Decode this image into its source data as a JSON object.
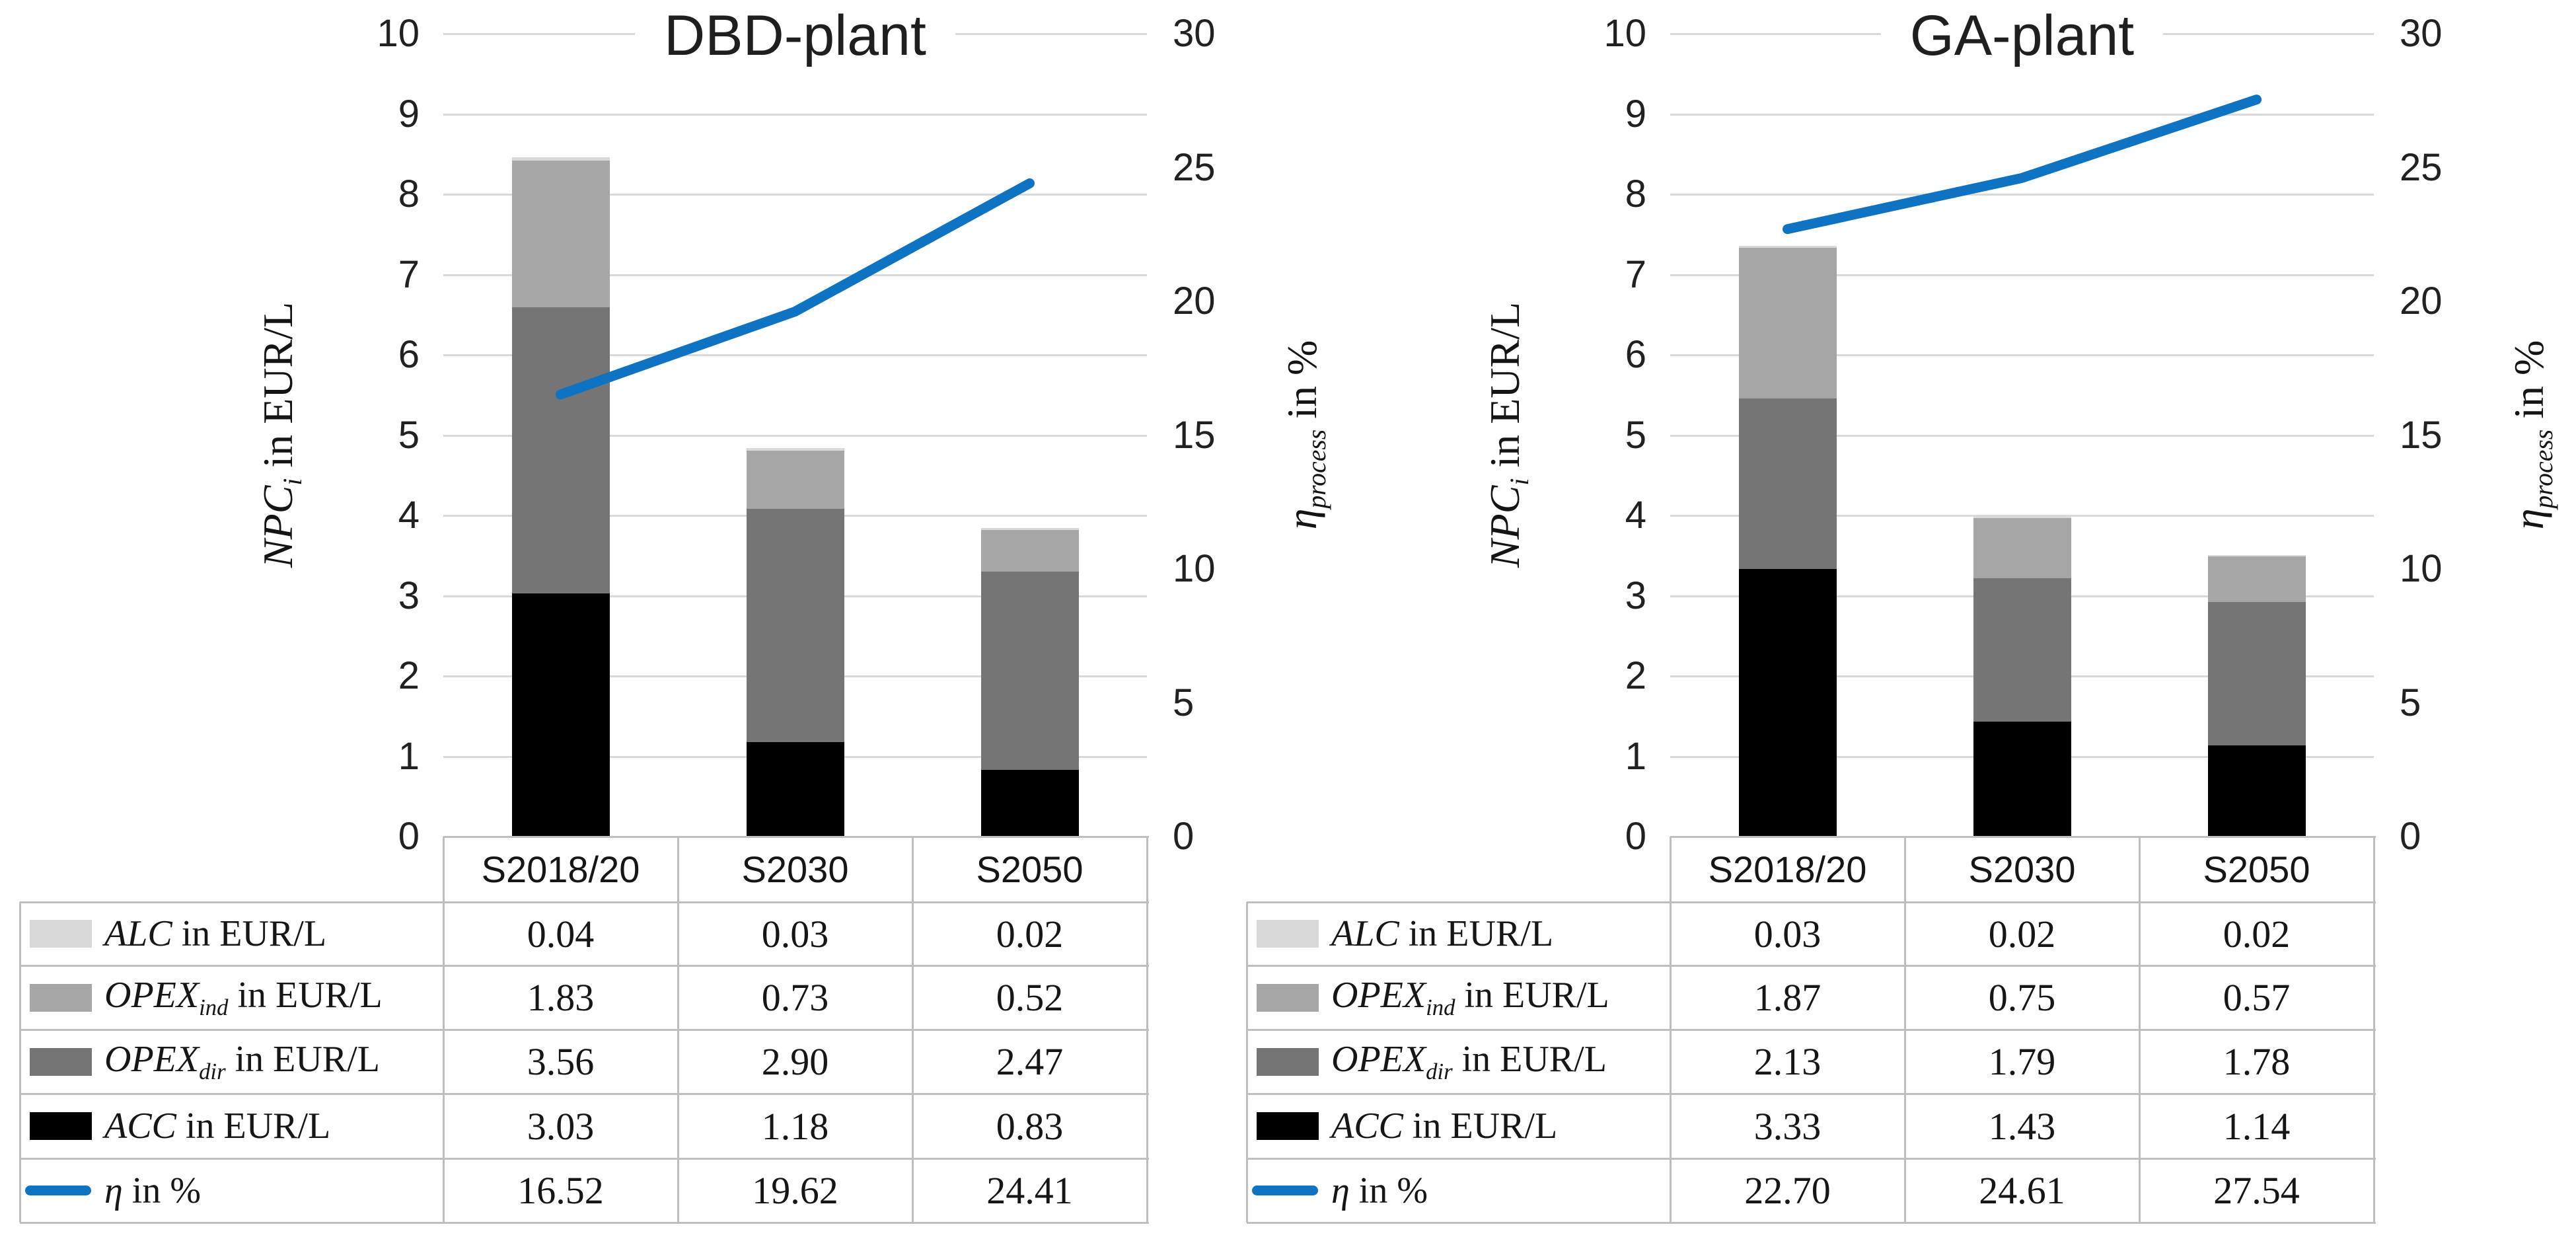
{
  "figure": {
    "background": "#ffffff"
  },
  "palette": {
    "grid": "#d9d9d9",
    "table_border": "#bfbfbf",
    "text": "#1a1a1a"
  },
  "chart_data": [
    {
      "type": "bar",
      "subtype": "stacked-bars-with-line-overlay",
      "title": "DBD-plant",
      "categories": [
        "S2018/20",
        "S2030",
        "S2050"
      ],
      "series": [
        {
          "name": "ALC in EUR/L",
          "rich": {
            "symbol": "ALC",
            "sub": "",
            "rest": " in EUR/L"
          },
          "color": "#d9d9d9",
          "values": [
            0.04,
            0.03,
            0.02
          ]
        },
        {
          "name": "OPEX_ind in EUR/L",
          "rich": {
            "symbol": "OPEX",
            "sub": "ind",
            "rest": " in EUR/L"
          },
          "color": "#a6a6a6",
          "values": [
            1.83,
            0.73,
            0.52
          ]
        },
        {
          "name": "OPEX_dir in EUR/L",
          "rich": {
            "symbol": "OPEX",
            "sub": "dir",
            "rest": " in EUR/L"
          },
          "color": "#757575",
          "values": [
            3.56,
            2.9,
            2.47
          ]
        },
        {
          "name": "ACC in EUR/L",
          "rich": {
            "symbol": "ACC",
            "sub": "",
            "rest": " in EUR/L"
          },
          "color": "#000000",
          "values": [
            3.03,
            1.18,
            0.83
          ]
        }
      ],
      "stack_order_bottom_to_top": [
        "ACC in EUR/L",
        "OPEX_dir in EUR/L",
        "OPEX_ind in EUR/L",
        "ALC in EUR/L"
      ],
      "line_series": {
        "name": "η in %",
        "rich": {
          "symbol": "η",
          "sub": "",
          "rest": " in %"
        },
        "color": "#0d73c2",
        "values": [
          16.52,
          19.62,
          24.41
        ]
      },
      "left_axis": {
        "label": "NPC_i in EUR/L",
        "rich": {
          "symbol": "NPC",
          "sub": "i",
          "rest": " in EUR/L"
        },
        "lim": [
          0,
          10
        ],
        "ticks": [
          10,
          9,
          8,
          7,
          6,
          5,
          4,
          3,
          2,
          1,
          0
        ]
      },
      "right_axis": {
        "label": "η_process in %",
        "rich": {
          "symbol": "η",
          "sub": "process",
          "rest": " in %"
        },
        "lim": [
          0,
          30
        ],
        "ticks": [
          30,
          25,
          20,
          15,
          10,
          5,
          0
        ]
      },
      "grid": true,
      "legend_position": "table-below-left-column"
    },
    {
      "type": "bar",
      "subtype": "stacked-bars-with-line-overlay",
      "title": "GA-plant",
      "categories": [
        "S2018/20",
        "S2030",
        "S2050"
      ],
      "series": [
        {
          "name": "ALC in EUR/L",
          "rich": {
            "symbol": "ALC",
            "sub": "",
            "rest": " in EUR/L"
          },
          "color": "#d9d9d9",
          "values": [
            0.03,
            0.02,
            0.02
          ]
        },
        {
          "name": "OPEX_ind in EUR/L",
          "rich": {
            "symbol": "OPEX",
            "sub": "ind",
            "rest": " in EUR/L"
          },
          "color": "#a6a6a6",
          "values": [
            1.87,
            0.75,
            0.57
          ]
        },
        {
          "name": "OPEX_dir in EUR/L",
          "rich": {
            "symbol": "OPEX",
            "sub": "dir",
            "rest": " in EUR/L"
          },
          "color": "#757575",
          "values": [
            2.13,
            1.79,
            1.78
          ]
        },
        {
          "name": "ACC in EUR/L",
          "rich": {
            "symbol": "ACC",
            "sub": "",
            "rest": " in EUR/L"
          },
          "color": "#000000",
          "values": [
            3.33,
            1.43,
            1.14
          ]
        }
      ],
      "stack_order_bottom_to_top": [
        "ACC in EUR/L",
        "OPEX_dir in EUR/L",
        "OPEX_ind in EUR/L",
        "ALC in EUR/L"
      ],
      "line_series": {
        "name": "η in %",
        "rich": {
          "symbol": "η",
          "sub": "",
          "rest": " in %"
        },
        "color": "#0d73c2",
        "values": [
          22.7,
          24.61,
          27.54
        ]
      },
      "left_axis": {
        "label": "NPC_i in EUR/L",
        "rich": {
          "symbol": "NPC",
          "sub": "i",
          "rest": " in EUR/L"
        },
        "lim": [
          0,
          10
        ],
        "ticks": [
          10,
          9,
          8,
          7,
          6,
          5,
          4,
          3,
          2,
          1,
          0
        ]
      },
      "right_axis": {
        "label": "η_process in %",
        "rich": {
          "symbol": "η",
          "sub": "process",
          "rest": " in %"
        },
        "lim": [
          0,
          30
        ],
        "ticks": [
          30,
          25,
          20,
          15,
          10,
          5,
          0
        ]
      },
      "grid": true,
      "legend_position": "table-below-left-column"
    }
  ]
}
